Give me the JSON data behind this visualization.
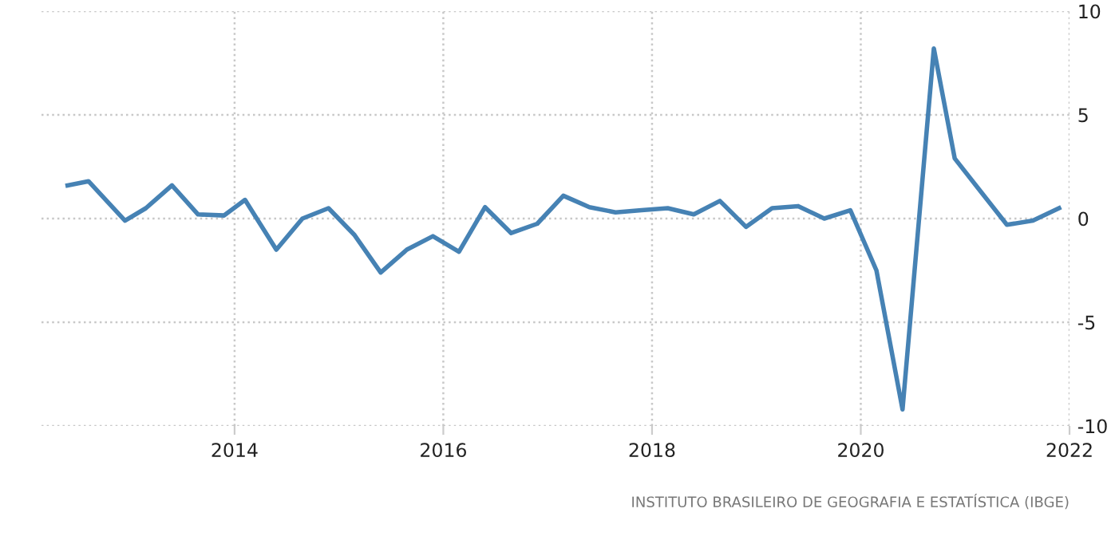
{
  "chart_data": {
    "type": "line",
    "x": [
      2012.4,
      2012.6,
      2012.95,
      2013.15,
      2013.4,
      2013.65,
      2013.9,
      2014.1,
      2014.4,
      2014.65,
      2014.9,
      2015.15,
      2015.4,
      2015.65,
      2015.9,
      2016.15,
      2016.4,
      2016.65,
      2016.9,
      2017.15,
      2017.4,
      2017.65,
      2017.9,
      2018.15,
      2018.4,
      2018.65,
      2018.9,
      2019.15,
      2019.4,
      2019.65,
      2019.9,
      2020.15,
      2020.4,
      2020.7,
      2020.9,
      2021.15,
      2021.4,
      2021.65,
      2021.9
    ],
    "series": [
      {
        "color": "#4682b4",
        "values": [
          1.6,
          1.8,
          -0.1,
          0.5,
          1.6,
          0.2,
          0.15,
          0.9,
          -1.5,
          0,
          0.5,
          -0.8,
          -2.6,
          -1.5,
          -0.85,
          -1.6,
          0.55,
          -0.7,
          -0.25,
          1.1,
          0.55,
          0.3,
          0.4,
          0.5,
          0.2,
          0.85,
          -0.4,
          0.5,
          0.6,
          0,
          0.4,
          -2.5,
          -9.2,
          8.2,
          2.9,
          1.3,
          -0.3,
          -0.1,
          0.5
        ]
      }
    ],
    "xlim": [
      2012.15,
      2022.0
    ],
    "xticks": [
      2014,
      2016,
      2018,
      2020,
      2022
    ],
    "ylim": [
      -10,
      10
    ],
    "yticks": [
      -10,
      -5,
      0,
      5,
      10
    ],
    "grid": true,
    "line_style": "solid",
    "marker": "none",
    "annotations": [
      "INSTITUTO BRASILEIRO DE GEOGRAFIA E ESTATÍSTICA (IBGE)"
    ]
  }
}
